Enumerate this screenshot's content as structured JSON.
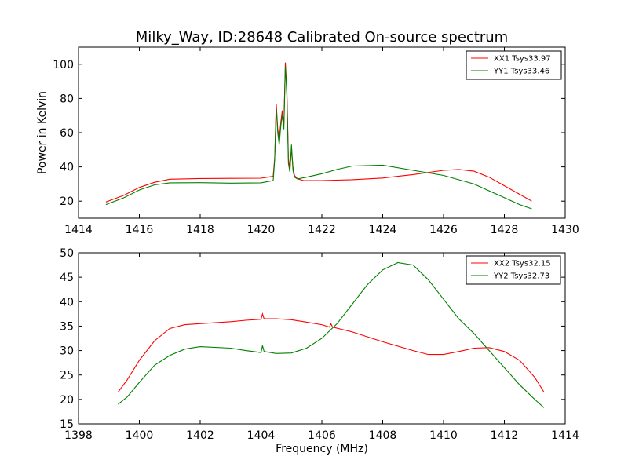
{
  "chart_data": [
    {
      "type": "line",
      "title": "Milky_Way, ID:28648 Calibrated On-source spectrum",
      "xlabel": "",
      "ylabel": "Power in Kelvin",
      "xlim": [
        1414,
        1430
      ],
      "ylim": [
        10,
        110
      ],
      "xticks": [
        1414,
        1416,
        1418,
        1420,
        1422,
        1424,
        1426,
        1428,
        1430
      ],
      "yticks": [
        20,
        40,
        60,
        80,
        100
      ],
      "legend_position": "top-right",
      "series": [
        {
          "name": "XX1 Tsys33.97",
          "color": "#ff0000",
          "x": [
            1414.9,
            1415.5,
            1416.0,
            1416.5,
            1417.0,
            1418.0,
            1419.0,
            1420.0,
            1420.4,
            1420.45,
            1420.5,
            1420.55,
            1420.6,
            1420.65,
            1420.7,
            1420.75,
            1420.8,
            1420.85,
            1420.9,
            1420.95,
            1421.0,
            1421.05,
            1421.1,
            1421.2,
            1421.4,
            1422.0,
            1423.0,
            1424.0,
            1425.0,
            1426.0,
            1426.5,
            1427.0,
            1427.5,
            1428.0,
            1428.5,
            1428.9
          ],
          "y": [
            19.5,
            23.5,
            28,
            31,
            32.8,
            33.2,
            33.3,
            33.4,
            34.5,
            45,
            77,
            62,
            56,
            66,
            73,
            65,
            101,
            85,
            45,
            39,
            50,
            40,
            35,
            33,
            32,
            32,
            32.5,
            33.5,
            35.5,
            38,
            38.5,
            37.5,
            34,
            29,
            24,
            20
          ]
        },
        {
          "name": "YY1 Tsys33.46",
          "color": "#008000",
          "x": [
            1414.9,
            1415.5,
            1416.0,
            1416.5,
            1417.0,
            1418.0,
            1419.0,
            1420.0,
            1420.4,
            1420.45,
            1420.5,
            1420.55,
            1420.6,
            1420.65,
            1420.7,
            1420.75,
            1420.8,
            1420.85,
            1420.9,
            1420.95,
            1421.0,
            1421.05,
            1421.1,
            1421.2,
            1421.5,
            1422.0,
            1422.5,
            1423.0,
            1424.0,
            1425.0,
            1426.0,
            1427.0,
            1427.5,
            1428.0,
            1428.5,
            1428.9
          ],
          "y": [
            18,
            22,
            26.5,
            29.5,
            30.7,
            30.8,
            30.5,
            30.7,
            32,
            44,
            74,
            60,
            53,
            64,
            70,
            62,
            99,
            82,
            42,
            37,
            53,
            38,
            34,
            33,
            34,
            36,
            38.5,
            40.5,
            41,
            38,
            35,
            30,
            26,
            22,
            18,
            15.5
          ]
        }
      ]
    },
    {
      "type": "line",
      "title": "",
      "xlabel": "Frequency (MHz)",
      "ylabel": "",
      "xlim": [
        1398,
        1414
      ],
      "ylim": [
        15,
        50
      ],
      "xticks": [
        1398,
        1400,
        1402,
        1404,
        1406,
        1408,
        1410,
        1412,
        1414
      ],
      "yticks": [
        15,
        20,
        25,
        30,
        35,
        40,
        45,
        50
      ],
      "legend_position": "top-right",
      "series": [
        {
          "name": "XX2 Tsys32.15",
          "color": "#ff0000",
          "x": [
            1399.3,
            1399.6,
            1400.0,
            1400.5,
            1401.0,
            1401.5,
            1402.0,
            1403.0,
            1403.5,
            1404.0,
            1404.05,
            1404.1,
            1404.5,
            1405.0,
            1405.5,
            1406.0,
            1406.25,
            1406.3,
            1406.35,
            1407.0,
            1408.0,
            1409.0,
            1409.5,
            1410.0,
            1410.5,
            1411.0,
            1411.5,
            1412.0,
            1412.5,
            1413.0,
            1413.3
          ],
          "y": [
            21.5,
            24,
            28,
            32,
            34.5,
            35.3,
            35.5,
            35.9,
            36.2,
            36.4,
            37.5,
            36.5,
            36.5,
            36.3,
            35.8,
            35.3,
            34.8,
            35.5,
            34.8,
            33.8,
            31.8,
            30,
            29.2,
            29.2,
            29.8,
            30.5,
            30.6,
            29.8,
            28,
            24.5,
            21.5
          ]
        },
        {
          "name": "YY2 Tsys32.73",
          "color": "#008000",
          "x": [
            1399.3,
            1399.6,
            1400.0,
            1400.5,
            1401.0,
            1401.5,
            1402.0,
            1403.0,
            1403.5,
            1404.0,
            1404.05,
            1404.1,
            1404.5,
            1405.0,
            1405.5,
            1406.0,
            1406.5,
            1407.0,
            1407.5,
            1408.0,
            1408.5,
            1409.0,
            1409.5,
            1410.0,
            1410.5,
            1411.0,
            1411.5,
            1412.0,
            1412.5,
            1413.0,
            1413.3
          ],
          "y": [
            19,
            20.5,
            23.5,
            27,
            29,
            30.3,
            30.8,
            30.5,
            30,
            29.6,
            31,
            29.8,
            29.4,
            29.5,
            30.5,
            32.5,
            35.5,
            39.5,
            43.5,
            46.5,
            48,
            47.5,
            44.5,
            40.5,
            36.5,
            33.5,
            30,
            26.5,
            23,
            20,
            18.3
          ]
        }
      ]
    }
  ]
}
